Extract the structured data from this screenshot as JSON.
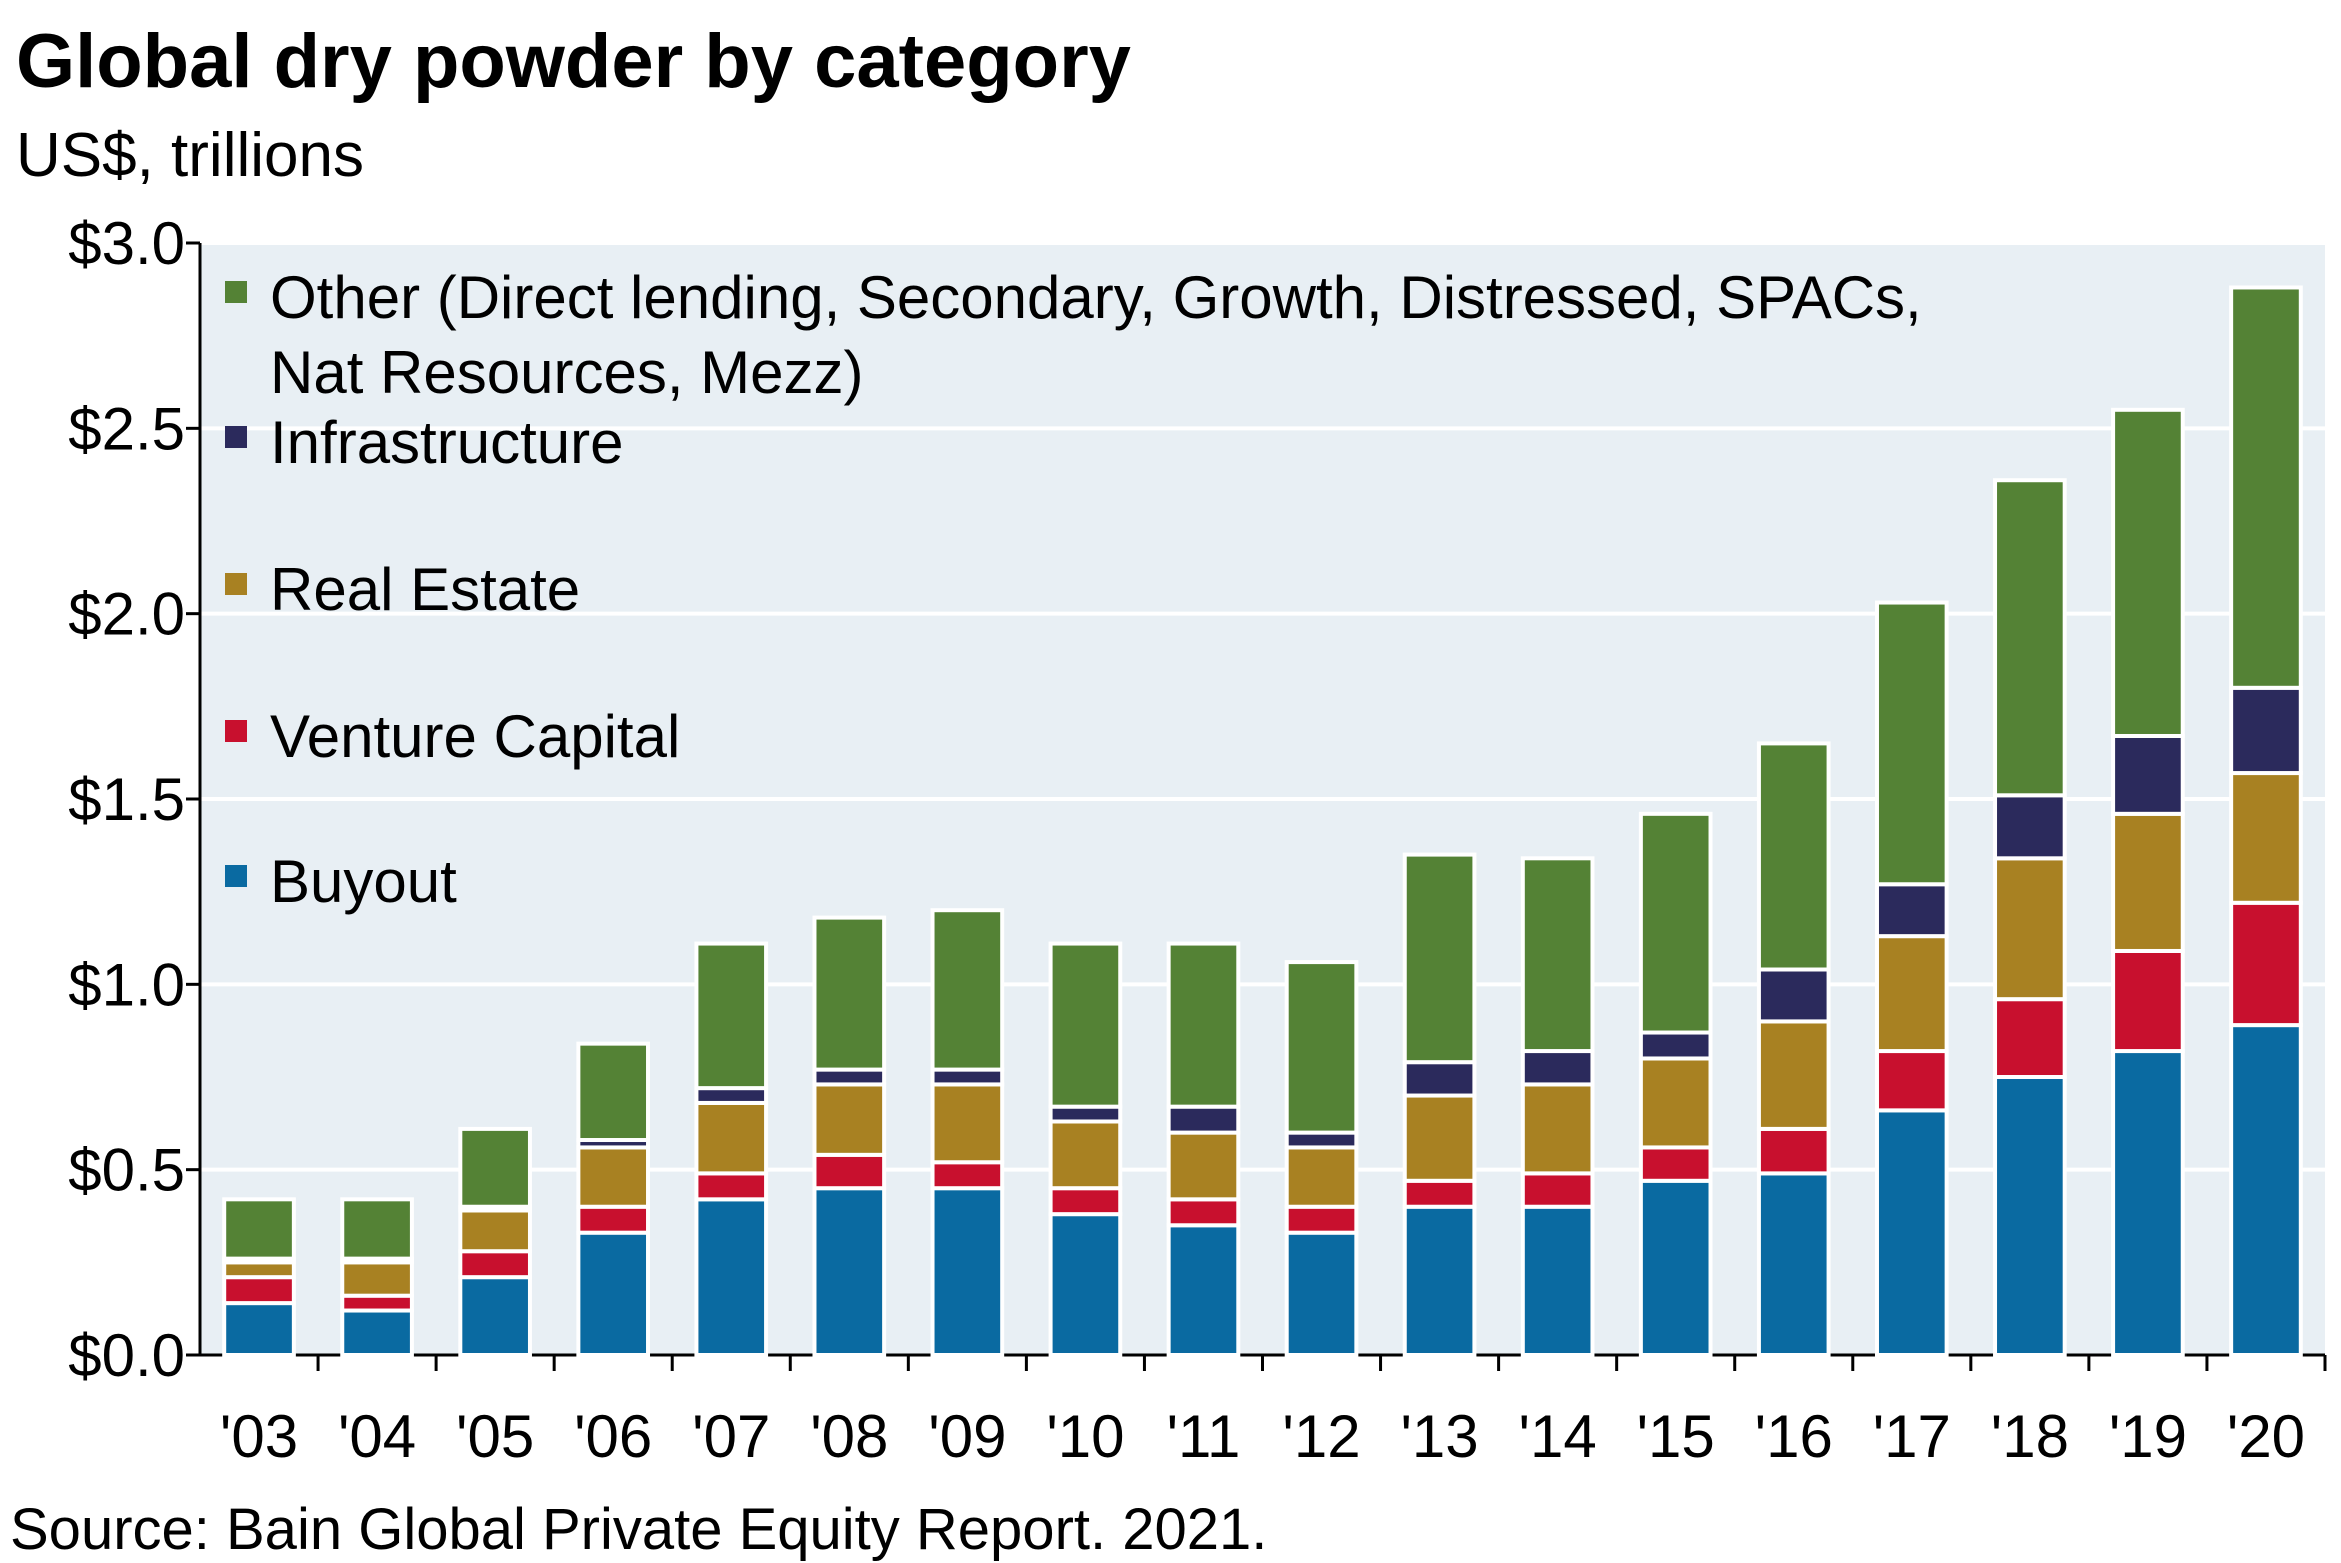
{
  "chart_data": {
    "type": "bar",
    "stacked": true,
    "title": "Global dry powder by category",
    "subtitle": "US$, trillions",
    "source": "Source: Bain Global Private Equity Report. 2021.",
    "xlabel": "",
    "ylabel": "",
    "ylim": [
      0,
      3.0
    ],
    "yticks": [
      0.0,
      0.5,
      1.0,
      1.5,
      2.0,
      2.5,
      3.0
    ],
    "ytick_labels": [
      "$0.0",
      "$0.5",
      "$1.0",
      "$1.5",
      "$2.0",
      "$2.5",
      "$3.0"
    ],
    "grid": true,
    "legend_position": "top-left",
    "categories": [
      "'03",
      "'04",
      "'05",
      "'06",
      "'07",
      "'08",
      "'09",
      "'10",
      "'11",
      "'12",
      "'13",
      "'14",
      "'15",
      "'16",
      "'17",
      "'18",
      "'19",
      "'20"
    ],
    "series": [
      {
        "name": "Buyout",
        "color": "#0a6aa1",
        "values": [
          0.14,
          0.12,
          0.21,
          0.33,
          0.42,
          0.45,
          0.45,
          0.38,
          0.35,
          0.33,
          0.4,
          0.4,
          0.47,
          0.49,
          0.66,
          0.75,
          0.82,
          0.89
        ]
      },
      {
        "name": "Venture Capital",
        "color": "#c8102e",
        "values": [
          0.07,
          0.04,
          0.07,
          0.07,
          0.07,
          0.09,
          0.07,
          0.07,
          0.07,
          0.07,
          0.07,
          0.09,
          0.09,
          0.12,
          0.16,
          0.21,
          0.27,
          0.33
        ]
      },
      {
        "name": "Real Estate",
        "color": "#a88122",
        "values": [
          0.04,
          0.09,
          0.11,
          0.16,
          0.19,
          0.19,
          0.21,
          0.18,
          0.18,
          0.16,
          0.23,
          0.24,
          0.24,
          0.29,
          0.31,
          0.38,
          0.37,
          0.35
        ]
      },
      {
        "name": "Infrastructure",
        "color": "#2b2a5c",
        "values": [
          0.01,
          0.01,
          0.01,
          0.02,
          0.04,
          0.04,
          0.04,
          0.04,
          0.07,
          0.04,
          0.09,
          0.09,
          0.07,
          0.14,
          0.14,
          0.17,
          0.21,
          0.23
        ]
      },
      {
        "name": "Other (Direct lending, Secondary, Growth, Distressed, SPACs, Nat Resources, Mezz)",
        "legend_lines": [
          "Other (Direct lending, Secondary, Growth, Distressed, SPACs,",
          "Nat Resources, Mezz)"
        ],
        "color": "#548235",
        "values": [
          0.16,
          0.16,
          0.21,
          0.26,
          0.39,
          0.41,
          0.43,
          0.44,
          0.44,
          0.46,
          0.56,
          0.52,
          0.59,
          0.61,
          0.76,
          0.85,
          0.88,
          1.08
        ]
      }
    ],
    "legend_order": [
      "Other (Direct lending, Secondary, Growth, Distressed, SPACs, Nat Resources, Mezz)",
      "Infrastructure",
      "Real Estate",
      "Venture Capital",
      "Buyout"
    ]
  },
  "colors": {
    "plot_background": "#e8eff4",
    "gridline": "#ffffff",
    "axis": "#000000"
  }
}
